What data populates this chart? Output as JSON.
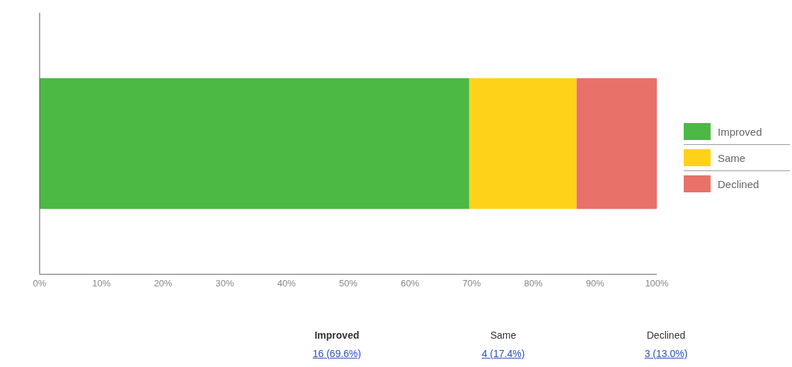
{
  "chart_data": {
    "type": "bar",
    "orientation": "horizontal",
    "stacked": true,
    "categories": [
      null
    ],
    "series": [
      {
        "name": "Improved",
        "color": "#4cb944",
        "values": [
          69.6
        ]
      },
      {
        "name": "Same",
        "color": "#ffd21a",
        "values": [
          17.4
        ]
      },
      {
        "name": "Declined",
        "color": "#e8726a",
        "values": [
          13.0
        ]
      }
    ],
    "annotations": [
      "16 (69.6%)",
      "4 (17.4%)",
      "3 (13.0%)"
    ],
    "xlim": [
      0,
      100
    ],
    "xticks": [
      {
        "value": 0,
        "label": "0%"
      },
      {
        "value": 10,
        "label": "10%"
      },
      {
        "value": 20,
        "label": "20%"
      },
      {
        "value": 30,
        "label": "30%"
      },
      {
        "value": 40,
        "label": "40%"
      },
      {
        "value": 50,
        "label": "50%"
      },
      {
        "value": 60,
        "label": "60%"
      },
      {
        "value": 70,
        "label": "70%"
      },
      {
        "value": 80,
        "label": "80%"
      },
      {
        "value": 90,
        "label": "90%"
      },
      {
        "value": 100,
        "label": "100%"
      }
    ],
    "grid": false,
    "legend": "right"
  }
}
